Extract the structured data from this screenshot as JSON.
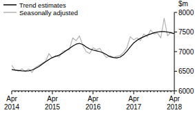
{
  "chart_data": {
    "type": "line",
    "y_label": "$m",
    "categories": [
      "Apr 2014",
      null,
      null,
      null,
      null,
      null,
      null,
      null,
      null,
      null,
      null,
      null,
      "Apr 2015",
      null,
      null,
      null,
      null,
      null,
      null,
      null,
      null,
      null,
      null,
      null,
      "Apr 2016",
      null,
      null,
      null,
      null,
      null,
      null,
      null,
      null,
      null,
      null,
      null,
      "Apr 2017",
      null,
      null,
      null,
      null,
      null,
      null,
      null,
      null,
      null,
      null,
      null,
      "Apr 2018"
    ],
    "series": [
      {
        "name": "Trend estimates",
        "color": "#000000",
        "values": [
          6540,
          6530,
          6520,
          6510,
          6505,
          6510,
          6530,
          6570,
          6620,
          6680,
          6740,
          6800,
          6850,
          6880,
          6910,
          6960,
          7020,
          7080,
          7140,
          7190,
          7210,
          7180,
          7120,
          7070,
          7040,
          7020,
          7000,
          6970,
          6920,
          6870,
          6850,
          6840,
          6860,
          6920,
          7010,
          7120,
          7220,
          7290,
          7340,
          7380,
          7420,
          7450,
          7480,
          7500,
          7510,
          7510,
          7500,
          7480,
          7460
        ]
      },
      {
        "name": "Seasonally adjusted",
        "color": "#b3b3b3",
        "values": [
          6650,
          6530,
          6500,
          6560,
          6490,
          6560,
          6470,
          6600,
          6650,
          6700,
          6760,
          6950,
          6830,
          6900,
          6860,
          7000,
          7030,
          7050,
          7350,
          7280,
          7400,
          7150,
          7000,
          6950,
          7100,
          7050,
          7080,
          6950,
          6850,
          6900,
          6850,
          6880,
          6900,
          6980,
          7100,
          7380,
          7300,
          7350,
          7280,
          7450,
          7380,
          7550,
          7450,
          7480,
          7350,
          7850,
          7400,
          7500,
          7430
        ]
      }
    ],
    "ylim": [
      6000,
      8000
    ],
    "yticks": [
      6000,
      6500,
      7000,
      7500,
      8000
    ],
    "grid": false,
    "legend": "upper left"
  }
}
